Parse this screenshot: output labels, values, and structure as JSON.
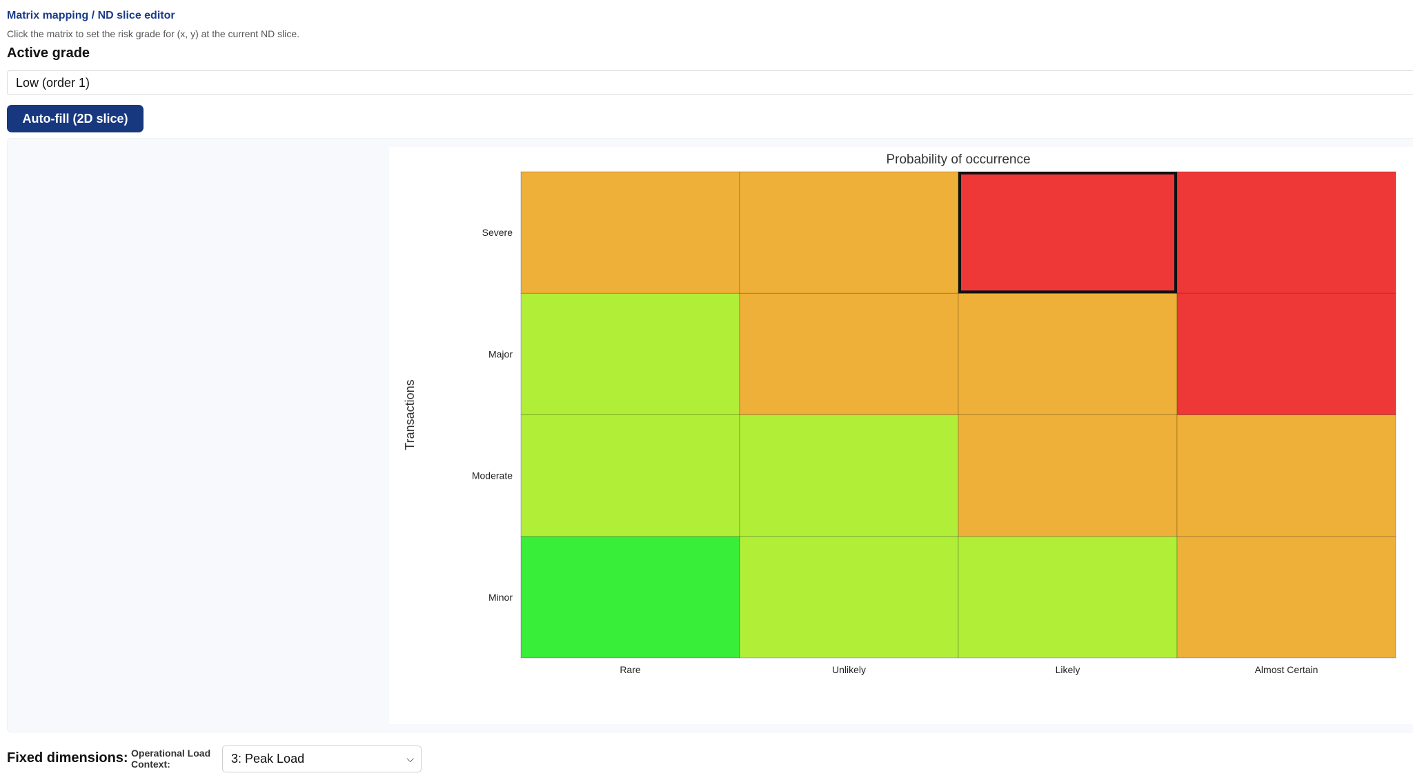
{
  "header": {
    "title": "Matrix mapping / ND slice editor",
    "instructions": "Click the matrix to set the risk grade for (x, y) at the current ND slice."
  },
  "grade": {
    "label": "Active grade",
    "selected": "Low (order 1)"
  },
  "toolbar": {
    "autofill_label": "Auto-fill (2D slice)"
  },
  "chart_data": {
    "type": "heatmap",
    "title": "Probability of occurrence",
    "xlabel": "",
    "ylabel": "Transactions",
    "x_categories": [
      "Rare",
      "Unlikely",
      "Likely",
      "Almost Certain"
    ],
    "y_categories": [
      "Minor",
      "Moderate",
      "Major",
      "Severe"
    ],
    "grid_grades": [
      [
        "low",
        "low_medium",
        "low_medium",
        "medium"
      ],
      [
        "low_medium",
        "low_medium",
        "medium",
        "medium"
      ],
      [
        "low_medium",
        "medium",
        "medium",
        "high"
      ],
      [
        "medium",
        "medium",
        "high",
        "high"
      ]
    ],
    "grade_colors": {
      "low": "#38ee38",
      "low_medium": "#b0ee38",
      "medium": "#eeb038",
      "high": "#ee3838"
    },
    "selected_cell": {
      "x": "Likely",
      "y": "Severe"
    }
  },
  "fixed_dimensions": {
    "label": "Fixed dimensions:",
    "dimension_label": "Operational Load Context:",
    "selected": "3: Peak Load"
  }
}
